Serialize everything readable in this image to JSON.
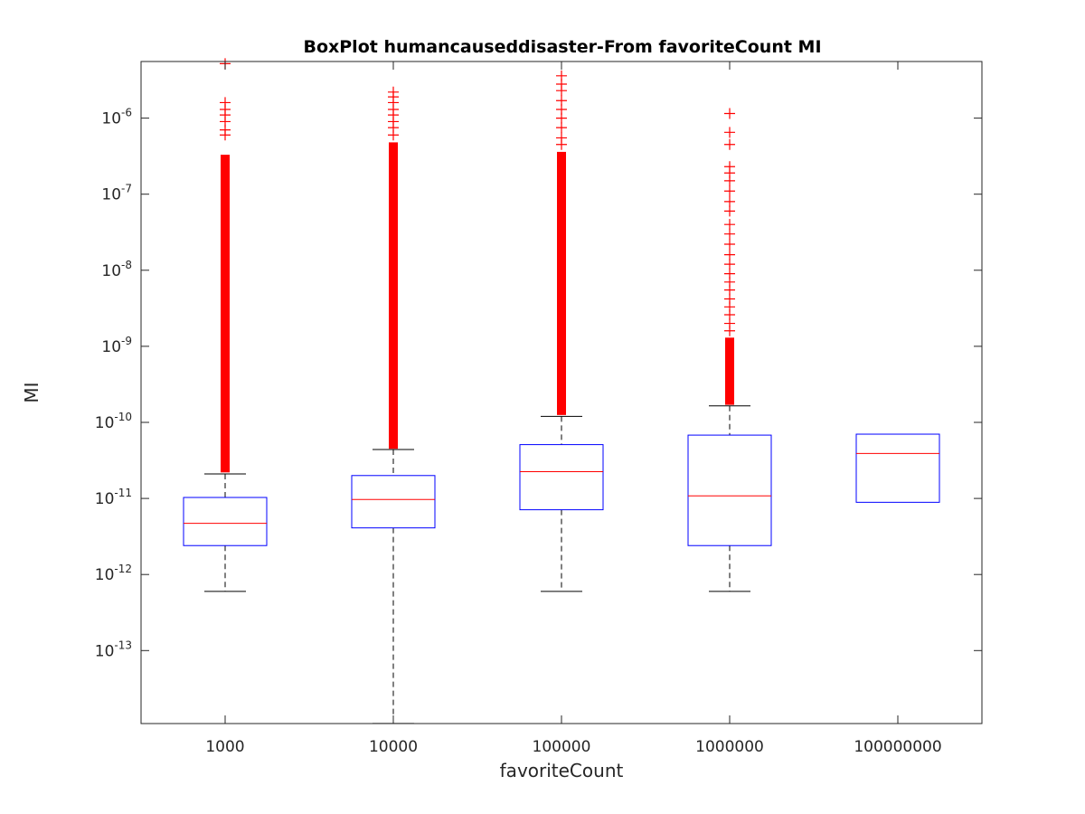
{
  "chart_data": {
    "type": "box",
    "title": "BoxPlot humancauseddisaster-From favoriteCount MI",
    "xlabel": "favoriteCount",
    "ylabel": "MI",
    "yscale": "log",
    "ylim": [
      1.1e-14,
      5.5e-06
    ],
    "yticks": [
      {
        "value": 1e-13,
        "label": "10",
        "exp": "-13"
      },
      {
        "value": 1e-12,
        "label": "10",
        "exp": "-12"
      },
      {
        "value": 1e-11,
        "label": "10",
        "exp": "-11"
      },
      {
        "value": 1e-10,
        "label": "10",
        "exp": "-10"
      },
      {
        "value": 1e-09,
        "label": "10",
        "exp": "-9"
      },
      {
        "value": 1e-08,
        "label": "10",
        "exp": "-8"
      },
      {
        "value": 1e-07,
        "label": "10",
        "exp": "-7"
      },
      {
        "value": 1e-06,
        "label": "10",
        "exp": "-6"
      }
    ],
    "categories": [
      "1000",
      "10000",
      "100000",
      "1000000",
      "100000000"
    ],
    "boxes": [
      {
        "category": "1000",
        "whisker_low": 6e-13,
        "q1": 2.4e-12,
        "median": 4.7e-12,
        "q3": 1.03e-11,
        "whisker_high": 2.1e-11,
        "outlier_min": 2.2e-11,
        "outlier_dense_max": 3.3e-07,
        "outlier_sparse": [
          6e-07,
          7e-07,
          9e-07,
          1.1e-06,
          1.3e-06,
          1.6e-06,
          5.2e-06
        ]
      },
      {
        "category": "10000",
        "whisker_low": 1.1e-14,
        "q1": 4.1e-12,
        "median": 9.7e-12,
        "q3": 2e-11,
        "whisker_high": 4.4e-11,
        "outlier_min": 4.5e-11,
        "outlier_dense_max": 4.8e-07,
        "outlier_sparse": [
          6e-07,
          7.5e-07,
          9e-07,
          1.1e-06,
          1.3e-06,
          1.6e-06,
          1.9e-06,
          2.2e-06
        ]
      },
      {
        "category": "100000",
        "whisker_low": 6e-13,
        "q1": 7.1e-12,
        "median": 2.25e-11,
        "q3": 5.1e-11,
        "whisker_high": 1.2e-10,
        "outlier_min": 1.25e-10,
        "outlier_dense_max": 3.6e-07,
        "outlier_sparse": [
          4.5e-07,
          5.5e-07,
          7.5e-07,
          1e-06,
          1.3e-06,
          1.7e-06,
          2.3e-06,
          2.8e-06,
          3.6e-06
        ]
      },
      {
        "category": "1000000",
        "whisker_low": 6e-13,
        "q1": 2.4e-12,
        "median": 1.08e-11,
        "q3": 6.8e-11,
        "whisker_high": 1.65e-10,
        "outlier_min": 1.7e-10,
        "outlier_dense_max": 1.3e-09,
        "outlier_sparse": [
          1.6e-09,
          2e-09,
          2.6e-09,
          3.3e-09,
          4.2e-09,
          5.5e-09,
          7e-09,
          9e-09,
          1.2e-08,
          1.6e-08,
          2.2e-08,
          3e-08,
          4e-08,
          6e-08,
          8e-08,
          1.1e-07,
          1.5e-07,
          1.9e-07,
          2.3e-07,
          4.5e-07,
          6.5e-07,
          1.15e-06
        ]
      },
      {
        "category": "100000000",
        "whisker_low": null,
        "q1": 8.9e-12,
        "median": 3.9e-11,
        "q3": 7e-11,
        "whisker_high": null,
        "outlier_min": null,
        "outlier_dense_max": null,
        "outlier_sparse": []
      }
    ],
    "colors": {
      "box": "#0000ff",
      "median": "#ff0000",
      "whisker": "#000000",
      "outlier": "#ff0000"
    },
    "grid": false
  }
}
